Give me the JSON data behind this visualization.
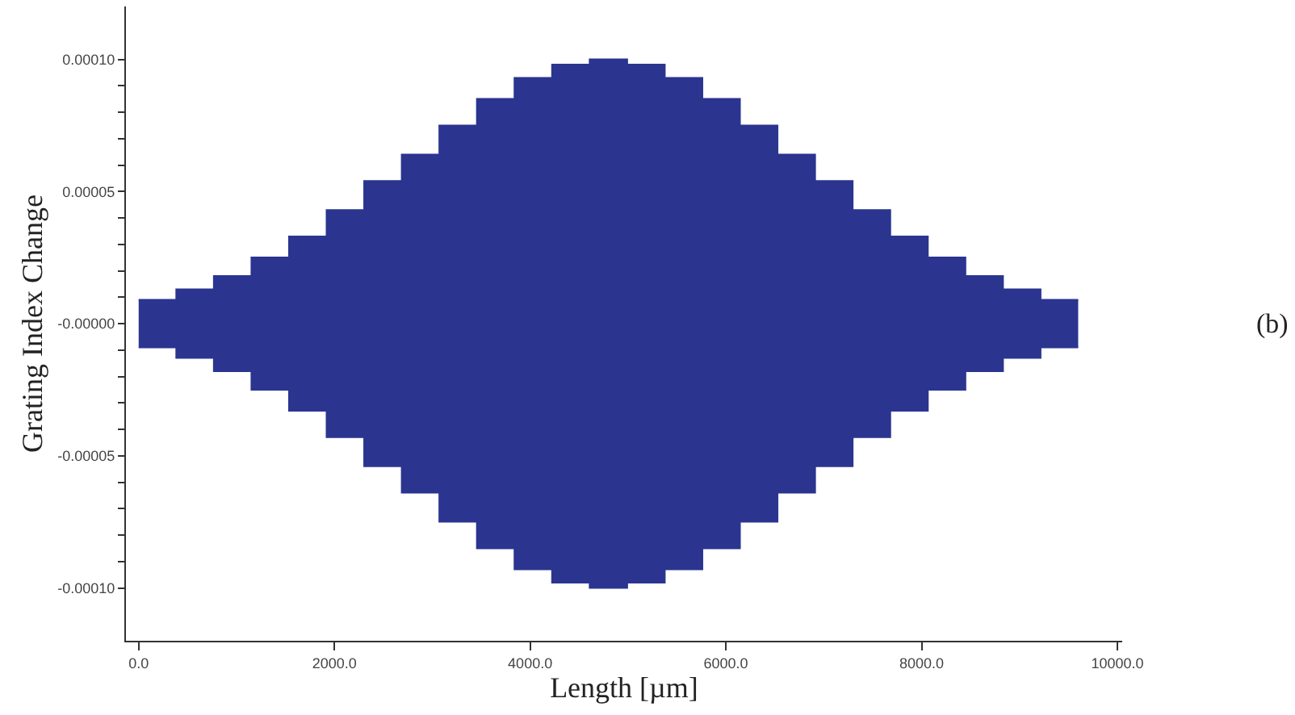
{
  "chart_data": {
    "type": "area",
    "xlabel": "Length [µm]",
    "ylabel": "Grating Index Change",
    "annotations": [
      "(b)"
    ],
    "x": [
      0,
      384,
      384,
      768,
      768,
      1152,
      1152,
      1536,
      1536,
      1920,
      1920,
      2304,
      2304,
      2688,
      2688,
      3072,
      3072,
      3456,
      3456,
      3840,
      3840,
      4224,
      4224,
      4608,
      4608,
      4992,
      4992,
      5376,
      5376,
      5760,
      5760,
      6144,
      6144,
      6528,
      6528,
      6912,
      6912,
      7296,
      7296,
      7680,
      7680,
      8064,
      8064,
      8448,
      8448,
      8832,
      8832,
      9216,
      9216,
      9600
    ],
    "series": [
      {
        "color": "#2b3590",
        "values": [
          9e-06,
          9e-06,
          1.3e-05,
          1.3e-05,
          1.8e-05,
          1.8e-05,
          2.5e-05,
          2.5e-05,
          3.3e-05,
          3.3e-05,
          4.3e-05,
          4.3e-05,
          5.4e-05,
          5.4e-05,
          6.4e-05,
          6.4e-05,
          7.5e-05,
          7.5e-05,
          8.5e-05,
          8.5e-05,
          9.3e-05,
          9.3e-05,
          9.8e-05,
          9.8e-05,
          0.0001,
          0.0001,
          9.8e-05,
          9.8e-05,
          9.3e-05,
          9.3e-05,
          8.5e-05,
          8.5e-05,
          7.5e-05,
          7.5e-05,
          6.4e-05,
          6.4e-05,
          5.4e-05,
          5.4e-05,
          4.3e-05,
          4.3e-05,
          3.3e-05,
          3.3e-05,
          2.5e-05,
          2.5e-05,
          1.8e-05,
          1.8e-05,
          1.3e-05,
          1.3e-05,
          9e-06,
          9e-06
        ]
      },
      {
        "color": "#2b3590",
        "values": [
          -9e-06,
          -9e-06,
          -1.3e-05,
          -1.3e-05,
          -1.8e-05,
          -1.8e-05,
          -2.5e-05,
          -2.5e-05,
          -3.3e-05,
          -3.3e-05,
          -4.3e-05,
          -4.3e-05,
          -5.4e-05,
          -5.4e-05,
          -6.4e-05,
          -6.4e-05,
          -7.5e-05,
          -7.5e-05,
          -8.5e-05,
          -8.5e-05,
          -9.3e-05,
          -9.3e-05,
          -9.8e-05,
          -9.8e-05,
          -0.0001,
          -0.0001,
          -9.8e-05,
          -9.8e-05,
          -9.3e-05,
          -9.3e-05,
          -8.5e-05,
          -8.5e-05,
          -7.5e-05,
          -7.5e-05,
          -6.4e-05,
          -6.4e-05,
          -5.4e-05,
          -5.4e-05,
          -4.3e-05,
          -4.3e-05,
          -3.3e-05,
          -3.3e-05,
          -2.5e-05,
          -2.5e-05,
          -1.8e-05,
          -1.8e-05,
          -1.3e-05,
          -1.3e-05,
          -9e-06,
          -9e-06
        ]
      }
    ],
    "xlim": [
      -130,
      10050
    ],
    "ylim": [
      -0.00012,
      0.00012
    ],
    "xticks": [
      {
        "value": 0,
        "label": "0.0"
      },
      {
        "value": 2000,
        "label": "2000.0"
      },
      {
        "value": 4000,
        "label": "4000.0"
      },
      {
        "value": 6000,
        "label": "6000.0"
      },
      {
        "value": 8000,
        "label": "8000.0"
      },
      {
        "value": 10000,
        "label": "10000.0"
      }
    ],
    "yticks": [
      {
        "value": -0.0001,
        "label": "-0.00010"
      },
      {
        "value": -9e-05,
        "label": null
      },
      {
        "value": -8e-05,
        "label": null
      },
      {
        "value": -7e-05,
        "label": null
      },
      {
        "value": -6e-05,
        "label": null
      },
      {
        "value": -5e-05,
        "label": "-0.00005"
      },
      {
        "value": -4e-05,
        "label": null
      },
      {
        "value": -3e-05,
        "label": null
      },
      {
        "value": -2e-05,
        "label": null
      },
      {
        "value": -1e-05,
        "label": null
      },
      {
        "value": 0,
        "label": "-0.00000"
      },
      {
        "value": 1e-05,
        "label": null
      },
      {
        "value": 2e-05,
        "label": null
      },
      {
        "value": 3e-05,
        "label": null
      },
      {
        "value": 4e-05,
        "label": null
      },
      {
        "value": 5e-05,
        "label": "0.00005"
      },
      {
        "value": 6e-05,
        "label": null
      },
      {
        "value": 7e-05,
        "label": null
      },
      {
        "value": 8e-05,
        "label": null
      },
      {
        "value": 9e-05,
        "label": null
      },
      {
        "value": 0.0001,
        "label": "0.00010"
      }
    ]
  }
}
